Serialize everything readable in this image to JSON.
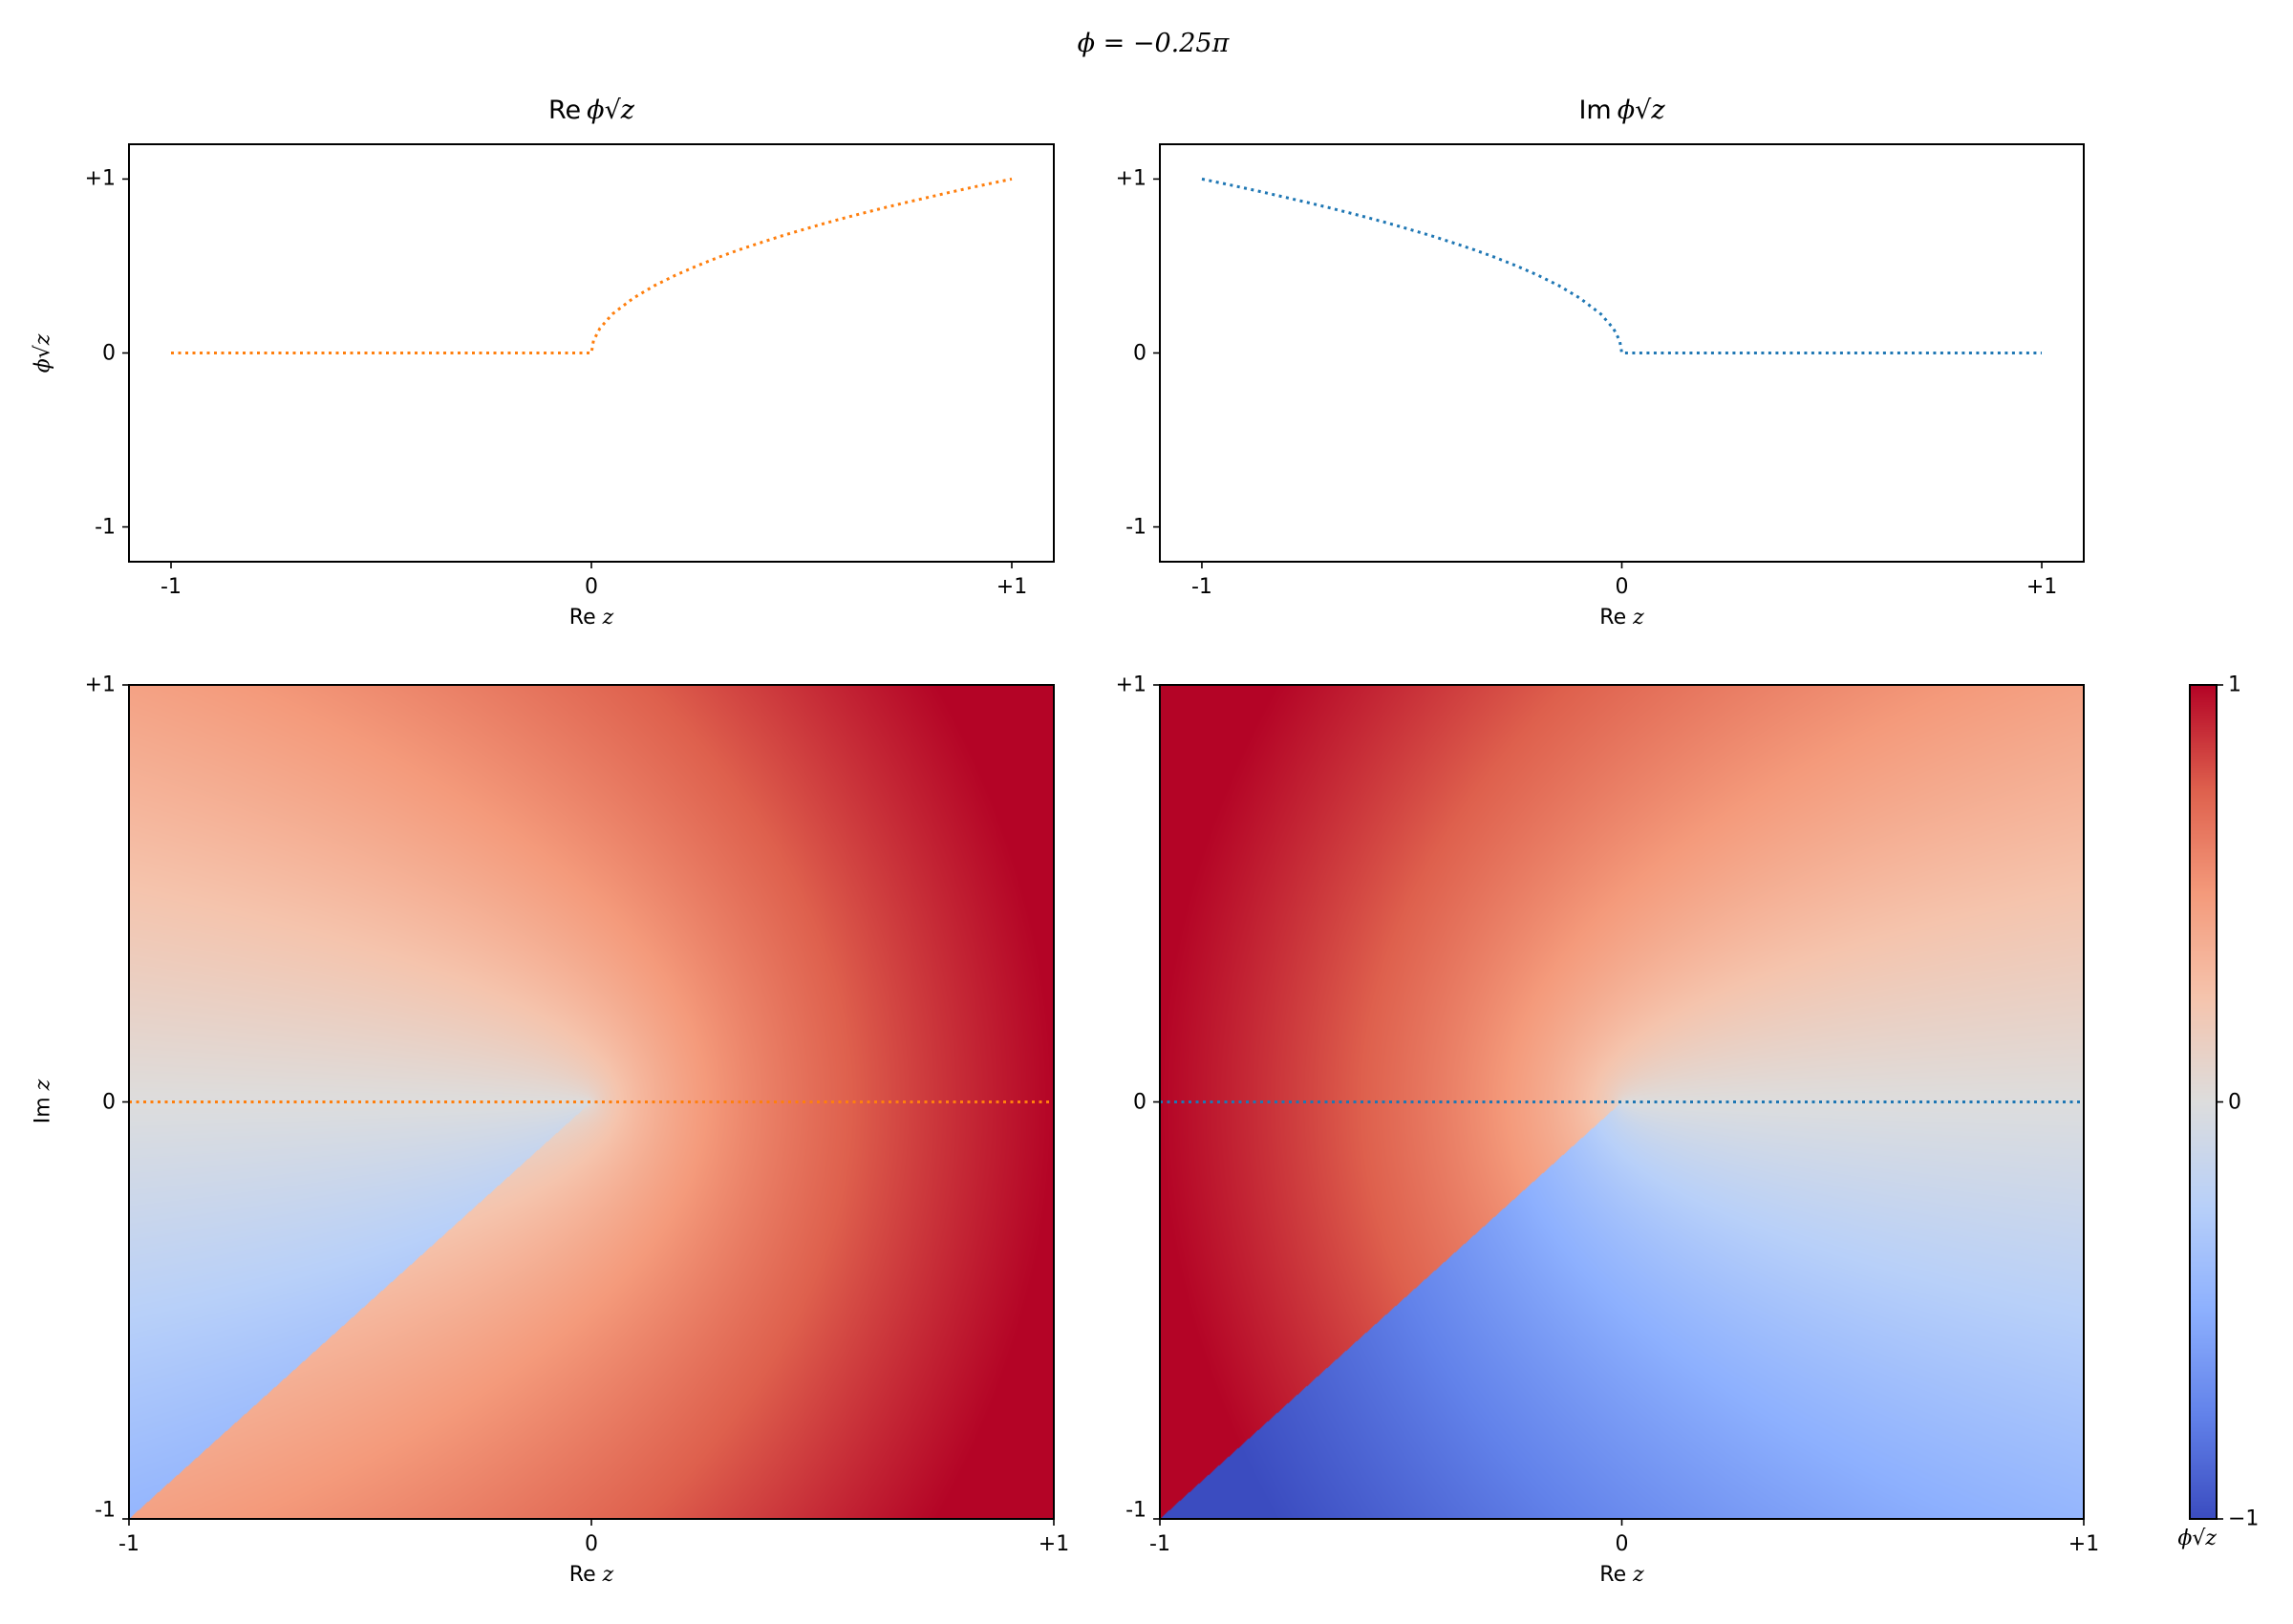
{
  "figure": {
    "suptitle": "ϕ = −0.25π",
    "phi_over_pi": -0.25
  },
  "labels": {
    "re": "Re",
    "im": "Im",
    "z": "z",
    "root_index": "ϕ",
    "radical": "√"
  },
  "chart_data": [
    {
      "type": "line",
      "id": "top-left",
      "title_prefix": "Re",
      "xlabel": "Re z",
      "ylabel": "ϕ√z",
      "xlim": [
        -1.1,
        1.1
      ],
      "ylim": [
        -1.2,
        1.2
      ],
      "xticks": [
        {
          "v": -1,
          "t": "-1"
        },
        {
          "v": 0,
          "t": "0"
        },
        {
          "v": 1,
          "t": "+1"
        }
      ],
      "yticks": [
        {
          "v": 1,
          "t": "+1"
        },
        {
          "v": 0,
          "t": "0"
        },
        {
          "v": -1,
          "t": "-1"
        }
      ],
      "series": [
        {
          "color": "#ff7f0e",
          "style": "dotted",
          "x": [
            -1,
            -0.9,
            -0.8,
            -0.7,
            -0.6,
            -0.5,
            -0.4,
            -0.3,
            -0.2,
            -0.1,
            0,
            0.005,
            0.02,
            0.05,
            0.1,
            0.15,
            0.2,
            0.25,
            0.3,
            0.35,
            0.4,
            0.45,
            0.5,
            0.55,
            0.6,
            0.65,
            0.7,
            0.75,
            0.8,
            0.85,
            0.9,
            0.95,
            1
          ],
          "y": [
            0,
            0,
            0,
            0,
            0,
            0,
            0,
            0,
            0,
            0,
            0,
            0.071,
            0.141,
            0.224,
            0.316,
            0.387,
            0.447,
            0.5,
            0.548,
            0.592,
            0.632,
            0.671,
            0.707,
            0.742,
            0.775,
            0.806,
            0.837,
            0.866,
            0.894,
            0.922,
            0.949,
            0.975,
            1
          ]
        }
      ]
    },
    {
      "type": "line",
      "id": "top-right",
      "title_prefix": "Im",
      "xlabel": "Re z",
      "xlim": [
        -1.1,
        1.1
      ],
      "ylim": [
        -1.2,
        1.2
      ],
      "xticks": [
        {
          "v": -1,
          "t": "-1"
        },
        {
          "v": 0,
          "t": "0"
        },
        {
          "v": 1,
          "t": "+1"
        }
      ],
      "yticks": [
        {
          "v": 1,
          "t": "+1"
        },
        {
          "v": 0,
          "t": "0"
        },
        {
          "v": -1,
          "t": "-1"
        }
      ],
      "series": [
        {
          "color": "#1f77b4",
          "style": "dotted",
          "x": [
            -1,
            -0.95,
            -0.9,
            -0.85,
            -0.8,
            -0.75,
            -0.7,
            -0.65,
            -0.6,
            -0.55,
            -0.5,
            -0.45,
            -0.4,
            -0.35,
            -0.3,
            -0.25,
            -0.2,
            -0.15,
            -0.1,
            -0.05,
            -0.02,
            -0.005,
            0,
            0.1,
            0.2,
            0.3,
            0.4,
            0.5,
            0.6,
            0.7,
            0.8,
            0.9,
            1
          ],
          "y": [
            1,
            0.975,
            0.949,
            0.922,
            0.894,
            0.866,
            0.837,
            0.806,
            0.775,
            0.742,
            0.707,
            0.671,
            0.632,
            0.592,
            0.548,
            0.5,
            0.447,
            0.387,
            0.316,
            0.224,
            0.141,
            0.071,
            0,
            0,
            0,
            0,
            0,
            0,
            0,
            0,
            0,
            0,
            0
          ]
        }
      ]
    },
    {
      "type": "heatmap",
      "id": "bottom-left",
      "component": "re",
      "xlabel": "Re z",
      "ylabel": "Im z",
      "xlim": [
        -1,
        1
      ],
      "ylim": [
        -1,
        1
      ],
      "clim": [
        -1,
        1
      ],
      "colormap": "coolwarm",
      "xticks": [
        {
          "v": -1,
          "t": "-1"
        },
        {
          "v": 0,
          "t": "0"
        },
        {
          "v": 1,
          "t": "+1"
        }
      ],
      "yticks": [
        {
          "v": 1,
          "t": "+1"
        },
        {
          "v": 0,
          "t": "0"
        },
        {
          "v": -1,
          "t": "-1"
        }
      ],
      "overlay": {
        "color": "#ff7f0e",
        "style": "dotted",
        "y": 0
      }
    },
    {
      "type": "heatmap",
      "id": "bottom-right",
      "component": "im",
      "xlabel": "Re z",
      "xlim": [
        -1,
        1
      ],
      "ylim": [
        -1,
        1
      ],
      "clim": [
        -1,
        1
      ],
      "colormap": "coolwarm",
      "xticks": [
        {
          "v": -1,
          "t": "-1"
        },
        {
          "v": 0,
          "t": "0"
        },
        {
          "v": 1,
          "t": "+1"
        }
      ],
      "yticks": [
        {
          "v": 1,
          "t": "+1"
        },
        {
          "v": 0,
          "t": "0"
        },
        {
          "v": -1,
          "t": "-1"
        }
      ],
      "overlay": {
        "color": "#1f77b4",
        "style": "dotted",
        "y": 0
      }
    }
  ],
  "colorbar": {
    "ticks": [
      {
        "v": 1,
        "t": "1"
      },
      {
        "v": 0,
        "t": "0"
      },
      {
        "v": -1,
        "t": "−1"
      }
    ],
    "label": "ϕ√z",
    "colormap_anchors": [
      "#3b4cc0",
      "#6282ea",
      "#8db0fe",
      "#b8d0f9",
      "#dddddd",
      "#f5c4ad",
      "#f49a7b",
      "#de604d",
      "#b40426"
    ]
  }
}
